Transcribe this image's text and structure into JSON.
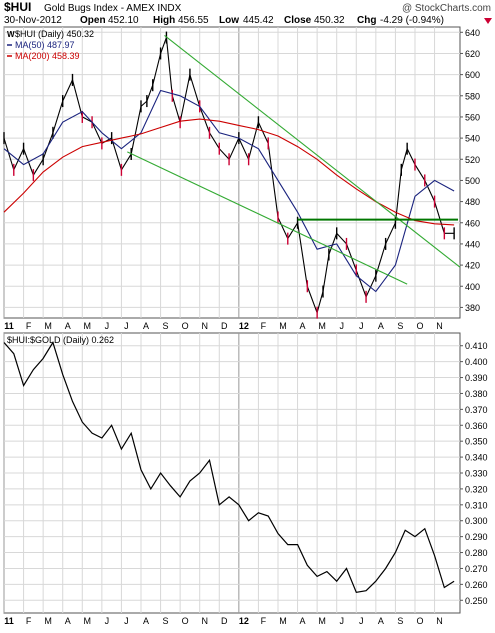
{
  "header": {
    "symbol": "$HUI",
    "name": "Gold Bugs Index - AMEX INDX",
    "watermark": "@ StockCharts.com",
    "date": "30-Nov-2012",
    "open_label": "Open",
    "open": "452.10",
    "high_label": "High",
    "high": "456.55",
    "low_label": "Low",
    "low": "445.42",
    "close_label": "Close",
    "close": "450.32",
    "chg_label": "Chg",
    "chg": "-4.29 (-0.94%)"
  },
  "colors": {
    "price": "#000000",
    "down_bar": "#cc0033",
    "ma50": "#1a237e",
    "ma200": "#cc0000",
    "trend": "#33aa33",
    "hline": "#007700",
    "grid": "#d8d8d8",
    "year_line": "#999999"
  },
  "chart_data": [
    {
      "type": "line",
      "panel": "upper",
      "legend": [
        "$HUI (Daily) 450.32",
        "MA(50) 487.97",
        "MA(200) 458.39"
      ],
      "ylim": [
        370,
        645
      ],
      "yticks": [
        "640",
        "620",
        "600",
        "580",
        "560",
        "540",
        "520",
        "500",
        "480",
        "460",
        "440",
        "420",
        "400",
        "380"
      ],
      "x_range": [
        0,
        23.3
      ],
      "x_tick_labels": [
        "11",
        "F",
        "M",
        "A",
        "M",
        "J",
        "J",
        "A",
        "S",
        "O",
        "N",
        "D",
        "12",
        "F",
        "M",
        "A",
        "M",
        "J",
        "J",
        "A",
        "S",
        "O",
        "N"
      ],
      "series": [
        {
          "name": "$HUI",
          "x": [
            0,
            0.5,
            1,
            1.5,
            2,
            2.5,
            3,
            3.5,
            4,
            4.5,
            5,
            5.5,
            6,
            6.5,
            7,
            7.3,
            7.6,
            8,
            8.3,
            8.6,
            9,
            9.5,
            10,
            10.5,
            11,
            11.5,
            12,
            12.5,
            13,
            13.5,
            14,
            14.5,
            15,
            15.5,
            16,
            16.3,
            16.6,
            17,
            17.5,
            18,
            18.5,
            19,
            19.5,
            20,
            20.3,
            20.6,
            21,
            21.5,
            22,
            22.5,
            23
          ],
          "values": [
            540,
            510,
            530,
            505,
            520,
            545,
            575,
            595,
            560,
            555,
            535,
            540,
            510,
            525,
            570,
            575,
            590,
            620,
            635,
            580,
            555,
            600,
            570,
            545,
            530,
            520,
            540,
            520,
            555,
            535,
            465,
            445,
            460,
            400,
            375,
            395,
            430,
            450,
            440,
            415,
            390,
            410,
            440,
            460,
            510,
            530,
            515,
            500,
            480,
            450,
            450
          ]
        },
        {
          "name": "MA(50)",
          "x": [
            0,
            1,
            2,
            3,
            4,
            5,
            6,
            7,
            8,
            9,
            10,
            11,
            12,
            13,
            14,
            15,
            16,
            17,
            18,
            19,
            20,
            21,
            22,
            23
          ],
          "values": [
            530,
            515,
            525,
            555,
            565,
            545,
            530,
            545,
            585,
            580,
            570,
            545,
            540,
            530,
            500,
            470,
            435,
            440,
            410,
            395,
            420,
            485,
            500,
            490
          ]
        },
        {
          "name": "MA(200)",
          "x": [
            0,
            1,
            2,
            3,
            4,
            5,
            6,
            7,
            8,
            9,
            10,
            11,
            12,
            13,
            14,
            15,
            16,
            17,
            18,
            19,
            20,
            21,
            22,
            23
          ],
          "values": [
            470,
            488,
            508,
            522,
            532,
            536,
            540,
            544,
            550,
            556,
            558,
            556,
            552,
            548,
            542,
            532,
            520,
            505,
            492,
            480,
            470,
            462,
            459,
            458
          ]
        }
      ],
      "trendlines": [
        {
          "x": [
            8.2,
            23.3
          ],
          "y": [
            637,
            418
          ]
        },
        {
          "x": [
            6.3,
            20.6
          ],
          "y": [
            527,
            402
          ]
        },
        {
          "x": [
            15,
            23.2
          ],
          "y": [
            463,
            463
          ]
        }
      ]
    },
    {
      "type": "line",
      "panel": "lower",
      "legend": [
        "$HUI:$GOLD (Daily) 0.262"
      ],
      "ylim": [
        0.242,
        0.418
      ],
      "yticks": [
        "0.410",
        "0.400",
        "0.390",
        "0.380",
        "0.370",
        "0.360",
        "0.350",
        "0.340",
        "0.330",
        "0.320",
        "0.310",
        "0.300",
        "0.290",
        "0.280",
        "0.270",
        "0.260",
        "0.250"
      ],
      "x_range": [
        0,
        23.3
      ],
      "x_tick_labels": [
        "11",
        "F",
        "M",
        "A",
        "M",
        "J",
        "J",
        "A",
        "S",
        "O",
        "N",
        "D",
        "12",
        "F",
        "M",
        "A",
        "M",
        "J",
        "J",
        "A",
        "S",
        "O",
        "N"
      ],
      "series": [
        {
          "name": "$HUI:$GOLD",
          "x": [
            0,
            0.5,
            1,
            1.5,
            2,
            2.5,
            3,
            3.5,
            4,
            4.5,
            5,
            5.5,
            6,
            6.5,
            7,
            7.5,
            8,
            8.5,
            9,
            9.5,
            10,
            10.5,
            11,
            11.5,
            12,
            12.5,
            13,
            13.5,
            14,
            14.5,
            15,
            15.5,
            16,
            16.5,
            17,
            17.5,
            18,
            18.5,
            19,
            19.5,
            20,
            20.5,
            21,
            21.5,
            22,
            22.5,
            23
          ],
          "values": [
            0.412,
            0.405,
            0.385,
            0.395,
            0.402,
            0.412,
            0.392,
            0.375,
            0.362,
            0.355,
            0.352,
            0.36,
            0.345,
            0.355,
            0.332,
            0.32,
            0.33,
            0.322,
            0.315,
            0.325,
            0.33,
            0.338,
            0.31,
            0.315,
            0.31,
            0.3,
            0.305,
            0.303,
            0.292,
            0.285,
            0.285,
            0.272,
            0.265,
            0.268,
            0.262,
            0.27,
            0.255,
            0.256,
            0.262,
            0.27,
            0.28,
            0.294,
            0.29,
            0.295,
            0.278,
            0.258,
            0.262
          ]
        }
      ]
    }
  ]
}
